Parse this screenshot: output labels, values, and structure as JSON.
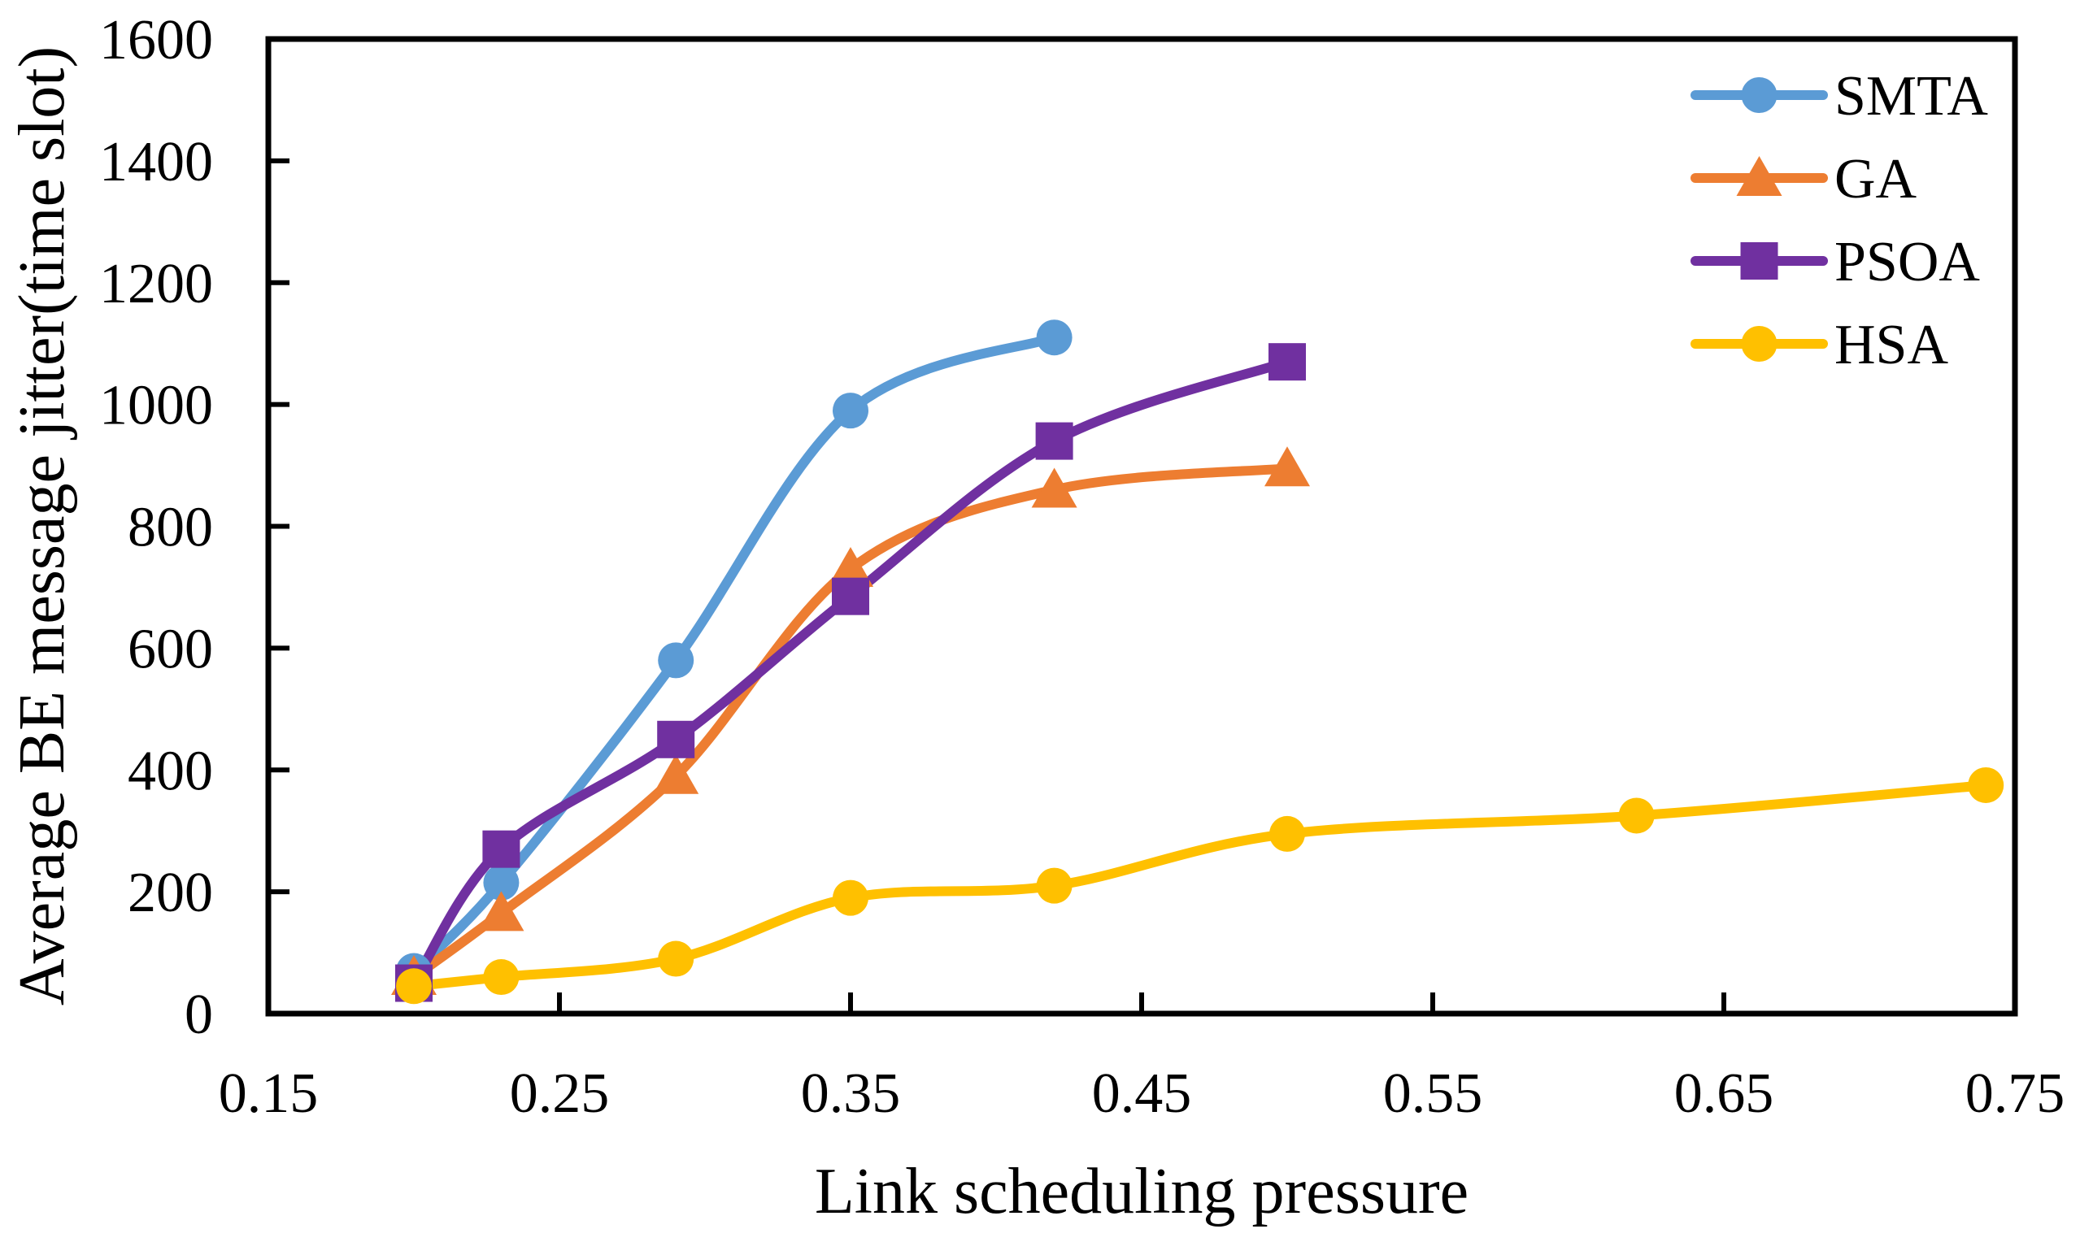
{
  "chart_data": {
    "type": "line",
    "title": "",
    "xlabel": "Link scheduling pressure",
    "ylabel": "Average BE message jitter(time slot)",
    "xlim": [
      0.15,
      0.75
    ],
    "ylim": [
      0,
      1600
    ],
    "x_ticks": [
      0.15,
      0.25,
      0.35,
      0.45,
      0.55,
      0.65,
      0.75
    ],
    "x_tick_labels": [
      "0.15",
      "0.25",
      "0.35",
      "0.45",
      "0.55",
      "0.65",
      "0.75"
    ],
    "y_ticks": [
      0,
      200,
      400,
      600,
      800,
      1000,
      1200,
      1400,
      1600
    ],
    "y_tick_labels": [
      "0",
      "200",
      "400",
      "600",
      "800",
      "1000",
      "1200",
      "1400",
      "1600"
    ],
    "grid": false,
    "legend_position": "top-right-inside",
    "axis_color": "#000000",
    "series": [
      {
        "name": "SMTA",
        "color": "#5B9BD5",
        "marker": "circle",
        "x": [
          0.2,
          0.23,
          0.29,
          0.35,
          0.42
        ],
        "y": [
          70,
          215,
          580,
          990,
          1110
        ]
      },
      {
        "name": "GA",
        "color": "#ED7D31",
        "marker": "triangle",
        "x": [
          0.2,
          0.23,
          0.29,
          0.35,
          0.42,
          0.5
        ],
        "y": [
          60,
          165,
          390,
          730,
          860,
          895
        ]
      },
      {
        "name": "PSOA",
        "color": "#7030A0",
        "marker": "square",
        "x": [
          0.2,
          0.23,
          0.29,
          0.35,
          0.42,
          0.5
        ],
        "y": [
          50,
          270,
          450,
          685,
          940,
          1070
        ]
      },
      {
        "name": "HSA",
        "color": "#FFC000",
        "marker": "circle",
        "x": [
          0.2,
          0.23,
          0.29,
          0.35,
          0.42,
          0.5,
          0.62,
          0.74
        ],
        "y": [
          45,
          60,
          90,
          190,
          210,
          295,
          325,
          375
        ]
      }
    ]
  }
}
